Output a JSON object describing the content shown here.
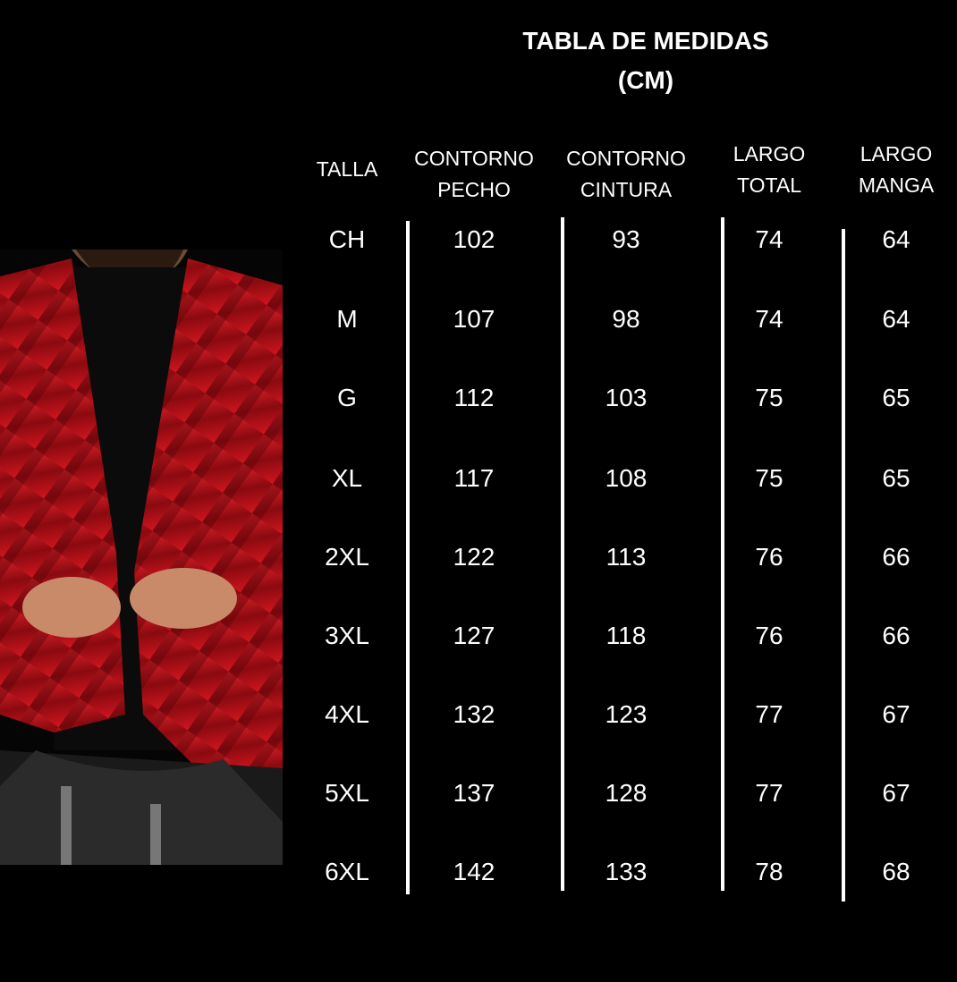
{
  "title": "TABLA DE MEDIDAS",
  "unit": "(CM)",
  "columns": [
    "TALLA",
    "CONTORNO PECHO",
    "CONTORNO CINTURA",
    "LARGO TOTAL",
    "LARGO MANGA"
  ],
  "column_lines": [
    [
      "TALLA"
    ],
    [
      "CONTORNO",
      "PECHO"
    ],
    [
      "CONTORNO",
      "CINTURA"
    ],
    [
      "LARGO",
      "TOTAL"
    ],
    [
      "LARGO",
      "MANGA"
    ]
  ],
  "rows": [
    [
      "CH",
      "102",
      "93",
      "74",
      "64"
    ],
    [
      "M",
      "107",
      "98",
      "74",
      "64"
    ],
    [
      "G",
      "112",
      "103",
      "75",
      "65"
    ],
    [
      "XL",
      "117",
      "108",
      "75",
      "65"
    ],
    [
      "2XL",
      "122",
      "113",
      "76",
      "66"
    ],
    [
      "3XL",
      "127",
      "118",
      "76",
      "66"
    ],
    [
      "4XL",
      "132",
      "123",
      "77",
      "67"
    ],
    [
      "5XL",
      "137",
      "128",
      "77",
      "67"
    ],
    [
      "6XL",
      "142",
      "133",
      "78",
      "68"
    ]
  ],
  "colors": {
    "background": "#000000",
    "text": "#ffffff",
    "jacket": "#c0101a"
  }
}
